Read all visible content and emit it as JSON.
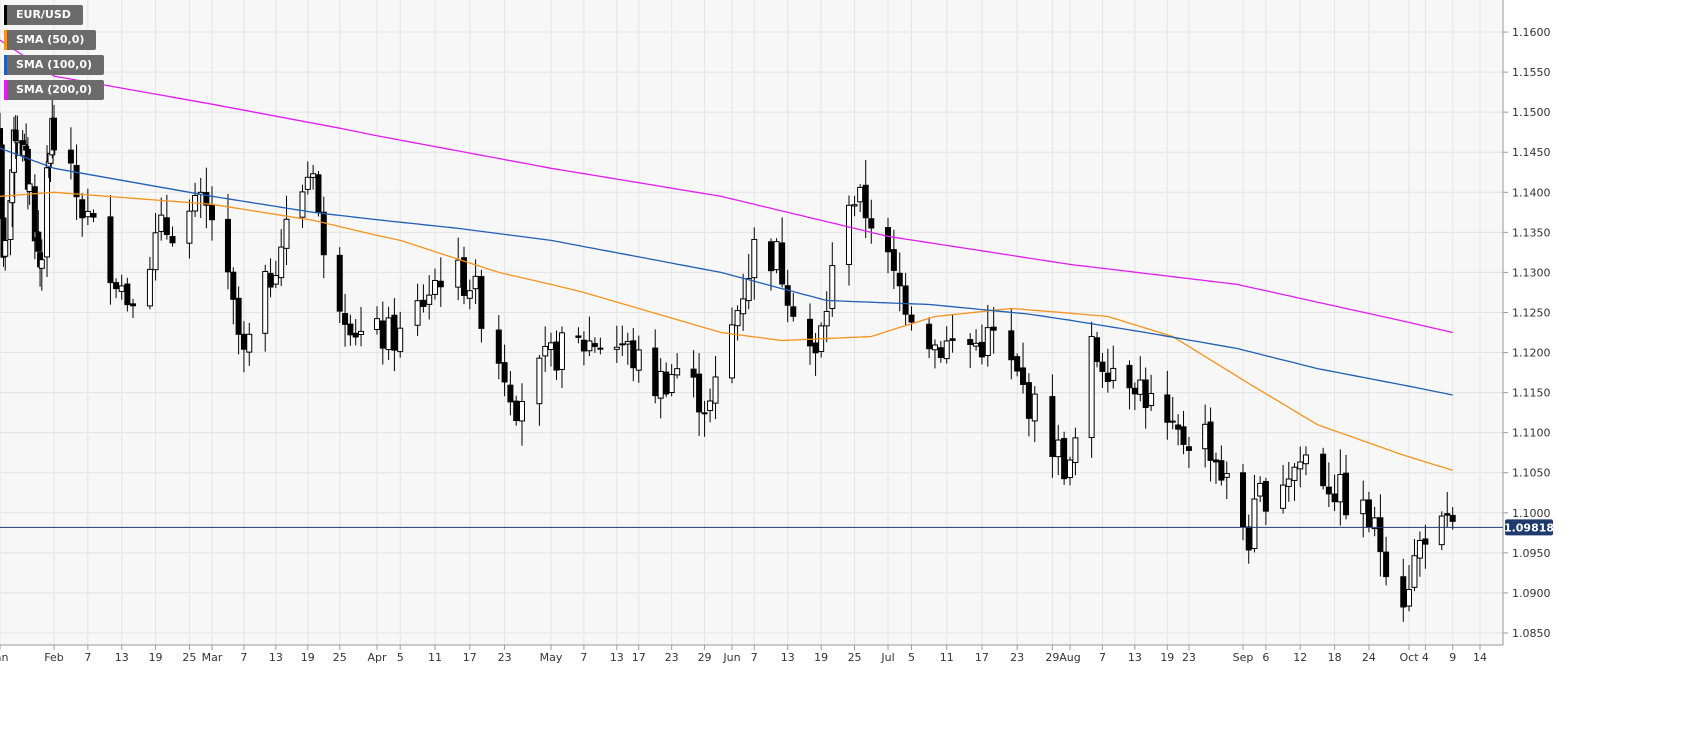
{
  "chart_data": {
    "type": "candlestick",
    "title": "",
    "xlabel": "",
    "ylabel": "",
    "ylim": [
      1.0835,
      1.164
    ],
    "y_ticks": [
      "1.1600",
      "1.1550",
      "1.1500",
      "1.1450",
      "1.1400",
      "1.1350",
      "1.1300",
      "1.1250",
      "1.1200",
      "1.1150",
      "1.1100",
      "1.1050",
      "1.1000",
      "1.0950",
      "1.0900",
      "1.0850"
    ],
    "x_tick_labels": [
      "Jan",
      "Feb",
      "7",
      "13",
      "19",
      "25",
      "Mar",
      "7",
      "13",
      "19",
      "25",
      "Apr",
      "5",
      "11",
      "17",
      "23",
      "May",
      "7",
      "13",
      "17",
      "23",
      "29",
      "Jun",
      "7",
      "13",
      "19",
      "25",
      "Jul",
      "5",
      "11",
      "17",
      "23",
      "29",
      "Aug",
      "7",
      "13",
      "19",
      "23",
      "Sep",
      "6",
      "12",
      "18",
      "24",
      "Oct",
      "4",
      "9",
      "14"
    ],
    "grid": true,
    "legend_position": "top-left",
    "last_price": "1.09818",
    "legend": [
      {
        "name": "EUR/USD",
        "color": "#000000"
      },
      {
        "name": "SMA (50,0)",
        "color": "#f7931e"
      },
      {
        "name": "SMA (100,0)",
        "color": "#1f5fb4"
      },
      {
        "name": "SMA (200,0)",
        "color": "#e11df0"
      }
    ],
    "series": [
      {
        "name": "EUR/USD",
        "kind": "candles",
        "anchors": [
          [
            "2019-01-01",
            1.146
          ],
          [
            "2019-01-03",
            1.13
          ],
          [
            "2019-01-10",
            1.148
          ],
          [
            "2019-01-14",
            1.146
          ],
          [
            "2019-01-21",
            1.136
          ],
          [
            "2019-01-24",
            1.131
          ],
          [
            "2019-01-31",
            1.148
          ],
          [
            "2019-02-01",
            1.146
          ],
          [
            "2019-02-06",
            1.138
          ],
          [
            "2019-02-14",
            1.127
          ],
          [
            "2019-02-20",
            1.135
          ],
          [
            "2019-02-27",
            1.138
          ],
          [
            "2019-03-01",
            1.137
          ],
          [
            "2019-03-07",
            1.119
          ],
          [
            "2019-03-13",
            1.132
          ],
          [
            "2019-03-20",
            1.144
          ],
          [
            "2019-03-22",
            1.131
          ],
          [
            "2019-03-29",
            1.122
          ],
          [
            "2019-04-05",
            1.122
          ],
          [
            "2019-04-12",
            1.13
          ],
          [
            "2019-04-17",
            1.129
          ],
          [
            "2019-04-25",
            1.114
          ],
          [
            "2019-05-02",
            1.12
          ],
          [
            "2019-05-09",
            1.1215
          ],
          [
            "2019-05-14",
            1.121
          ],
          [
            "2019-05-20",
            1.116
          ],
          [
            "2019-05-24",
            1.118
          ],
          [
            "2019-05-30",
            1.113
          ],
          [
            "2019-06-07",
            1.133
          ],
          [
            "2019-06-11",
            1.132
          ],
          [
            "2019-06-18",
            1.119
          ],
          [
            "2019-06-24",
            1.14
          ],
          [
            "2019-06-28",
            1.137
          ],
          [
            "2019-07-02",
            1.129
          ],
          [
            "2019-07-09",
            1.121
          ],
          [
            "2019-07-16",
            1.121
          ],
          [
            "2019-07-19",
            1.122
          ],
          [
            "2019-07-25",
            1.114
          ],
          [
            "2019-08-01",
            1.105
          ],
          [
            "2019-08-05",
            1.12
          ],
          [
            "2019-08-13",
            1.117
          ],
          [
            "2019-08-20",
            1.109
          ],
          [
            "2019-08-26",
            1.11
          ],
          [
            "2019-09-03",
            1.097
          ],
          [
            "2019-09-05",
            1.102
          ],
          [
            "2019-09-13",
            1.107
          ],
          [
            "2019-09-18",
            1.103
          ],
          [
            "2019-09-24",
            1.099
          ],
          [
            "2019-09-30",
            1.09
          ],
          [
            "2019-10-04",
            1.098
          ],
          [
            "2019-10-09",
            1.0975
          ]
        ]
      },
      {
        "name": "SMA (50,0)",
        "kind": "line",
        "points": [
          [
            "2019-01-01",
            1.1395
          ],
          [
            "2019-02-01",
            1.14
          ],
          [
            "2019-03-01",
            1.1385
          ],
          [
            "2019-03-20",
            1.1365
          ],
          [
            "2019-04-05",
            1.134
          ],
          [
            "2019-04-22",
            1.13
          ],
          [
            "2019-05-07",
            1.1275
          ],
          [
            "2019-06-01",
            1.1225
          ],
          [
            "2019-06-12",
            1.1215
          ],
          [
            "2019-06-28",
            1.122
          ],
          [
            "2019-07-09",
            1.1245
          ],
          [
            "2019-07-22",
            1.1255
          ],
          [
            "2019-08-08",
            1.1245
          ],
          [
            "2019-08-20",
            1.122
          ],
          [
            "2019-09-01",
            1.117
          ],
          [
            "2019-09-15",
            1.111
          ],
          [
            "2019-09-30",
            1.1072
          ],
          [
            "2019-10-09",
            1.1053
          ]
        ]
      },
      {
        "name": "SMA (100,0)",
        "kind": "line",
        "points": [
          [
            "2019-01-01",
            1.1455
          ],
          [
            "2019-02-01",
            1.143
          ],
          [
            "2019-03-01",
            1.1395
          ],
          [
            "2019-03-20",
            1.1375
          ],
          [
            "2019-04-15",
            1.1355
          ],
          [
            "2019-05-01",
            1.134
          ],
          [
            "2019-06-01",
            1.13
          ],
          [
            "2019-06-20",
            1.1265
          ],
          [
            "2019-07-08",
            1.126
          ],
          [
            "2019-07-25",
            1.1248
          ],
          [
            "2019-08-15",
            1.1225
          ],
          [
            "2019-09-01",
            1.1205
          ],
          [
            "2019-09-15",
            1.118
          ],
          [
            "2019-10-09",
            1.1147
          ]
        ]
      },
      {
        "name": "SMA (200,0)",
        "kind": "line",
        "points": [
          [
            "2019-01-01",
            1.159
          ],
          [
            "2019-02-01",
            1.1545
          ],
          [
            "2019-03-01",
            1.151
          ],
          [
            "2019-03-25",
            1.148
          ],
          [
            "2019-05-01",
            1.143
          ],
          [
            "2019-06-01",
            1.1395
          ],
          [
            "2019-07-01",
            1.1345
          ],
          [
            "2019-08-01",
            1.131
          ],
          [
            "2019-09-01",
            1.1285
          ],
          [
            "2019-10-09",
            1.1225
          ]
        ]
      }
    ]
  }
}
